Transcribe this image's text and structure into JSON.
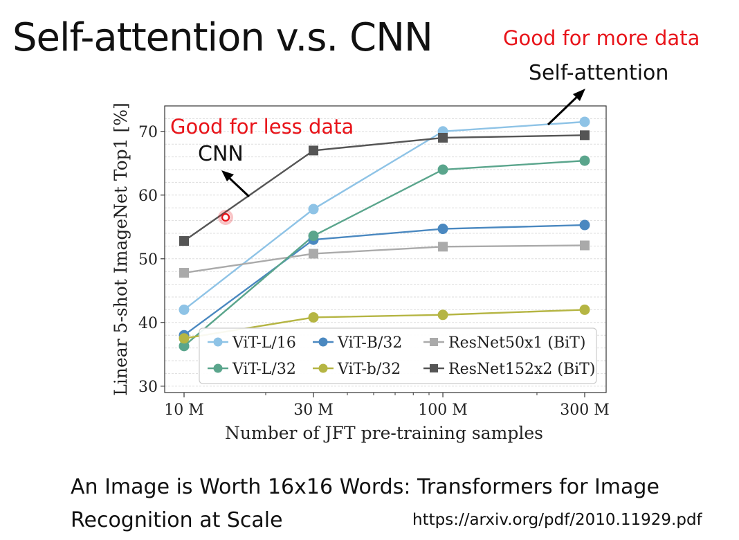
{
  "slide": {
    "title": "Self-attention v.s. CNN",
    "good_more": "Good for more data",
    "self_attention_label": "Self-attention",
    "good_less": "Good for less data",
    "cnn_label": "CNN",
    "caption": "An Image is Worth 16x16 Words: Transformers for Image Recognition at Scale",
    "url": "https://arxiv.org/pdf/2010.11929.pdf"
  },
  "colors": {
    "annotation_red": "#e8141a",
    "vit_l16": "#8ec3e6",
    "vit_l32": "#5aa58c",
    "vit_b32": "#4a88c0",
    "vit_b32_small": "#b5b543",
    "resnet50": "#aaaaaa",
    "resnet152": "#555555"
  },
  "chart_data": {
    "type": "line",
    "title": "",
    "xlabel": "Number of JFT pre-training samples",
    "ylabel": "Linear 5-shot ImageNet Top1 [%]",
    "x_scale": "log",
    "categories": [
      "10 M",
      "30 M",
      "100 M",
      "300 M"
    ],
    "x": [
      10,
      30,
      90,
      300
    ],
    "ylim": [
      29,
      74
    ],
    "yticks": [
      30,
      40,
      50,
      60,
      70
    ],
    "grid": true,
    "legend_position": "bottom-right",
    "series": [
      {
        "name": "ViT-L/16",
        "marker": "circle",
        "color": "#8ec3e6",
        "values": [
          42,
          57.8,
          70,
          71.5
        ]
      },
      {
        "name": "ViT-B/32",
        "marker": "circle",
        "color": "#4a88c0",
        "values": [
          38,
          53,
          54.7,
          55.3
        ]
      },
      {
        "name": "ResNet50x1 (BiT)",
        "marker": "square",
        "color": "#aaaaaa",
        "values": [
          47.8,
          50.8,
          51.9,
          52.1
        ]
      },
      {
        "name": "ViT-L/32",
        "marker": "circle",
        "color": "#5aa58c",
        "values": [
          36.3,
          53.6,
          64,
          65.4
        ]
      },
      {
        "name": "ViT-b/32",
        "marker": "circle",
        "color": "#b5b543",
        "values": [
          37.5,
          40.8,
          41.2,
          42
        ]
      },
      {
        "name": "ResNet152x2 (BiT)",
        "marker": "square",
        "color": "#555555",
        "values": [
          52.8,
          67,
          69,
          69.4
        ]
      }
    ]
  }
}
